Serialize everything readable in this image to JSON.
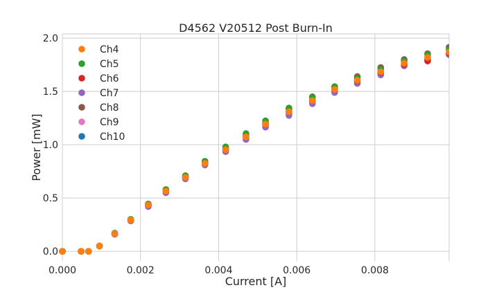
{
  "chart_data": {
    "type": "scatter",
    "title": "D4562 V20512 Post Burn-In",
    "xlabel": "Current [A]",
    "ylabel": "Power [mW]",
    "xlim": [
      0.0,
      0.0099
    ],
    "ylim": [
      -0.09,
      2.04
    ],
    "xticks": [
      0.0,
      0.002,
      0.004,
      0.006,
      0.008
    ],
    "xtick_labels": [
      "0.000",
      "0.002",
      "0.004",
      "0.006",
      "0.008"
    ],
    "yticks": [
      0.0,
      0.5,
      1.0,
      1.5,
      2.0
    ],
    "ytick_labels": [
      "0.0",
      "0.5",
      "1.0",
      "1.5",
      "2.0"
    ],
    "grid": true,
    "legend_position": "top-left",
    "x": [
      0.0,
      0.00048,
      0.00067,
      0.00095,
      0.00134,
      0.00175,
      0.0022,
      0.00265,
      0.00315,
      0.00365,
      0.00418,
      0.0047,
      0.0052,
      0.0058,
      0.0064,
      0.00697,
      0.00755,
      0.00815,
      0.00875,
      0.00935,
      0.0099
    ],
    "series": [
      {
        "name": "Ch4",
        "color": "#ff7f0e",
        "values": [
          0.0,
          0.0,
          0.0,
          0.05,
          0.165,
          0.295,
          0.435,
          0.565,
          0.695,
          0.825,
          0.955,
          1.075,
          1.195,
          1.31,
          1.415,
          1.52,
          1.605,
          1.685,
          1.765,
          1.82,
          1.87
        ]
      },
      {
        "name": "Ch5",
        "color": "#2ca02c",
        "values": [
          0.0,
          0.0,
          0.0,
          0.05,
          0.17,
          0.3,
          0.445,
          0.58,
          0.71,
          0.845,
          0.98,
          1.105,
          1.225,
          1.345,
          1.445,
          1.545,
          1.625,
          1.71,
          1.785,
          1.845,
          1.895
        ]
      },
      {
        "name": "Ch6",
        "color": "#d62728",
        "values": [
          0.0,
          0.0,
          0.0,
          0.05,
          0.165,
          0.295,
          0.435,
          0.565,
          0.695,
          0.825,
          0.955,
          1.08,
          1.195,
          1.31,
          1.415,
          1.52,
          1.6,
          1.68,
          1.755,
          1.785,
          1.86
        ]
      },
      {
        "name": "Ch7",
        "color": "#9467bd",
        "values": [
          0.0,
          0.0,
          0.0,
          0.05,
          0.16,
          0.285,
          0.42,
          0.55,
          0.68,
          0.81,
          0.935,
          1.05,
          1.165,
          1.275,
          1.385,
          1.49,
          1.575,
          1.655,
          1.74,
          1.795,
          1.845
        ]
      },
      {
        "name": "Ch8",
        "color": "#8c564b",
        "values": [
          0.0,
          0.0,
          0.0,
          0.05,
          0.17,
          0.3,
          0.44,
          0.575,
          0.705,
          0.845,
          0.97,
          1.095,
          1.21,
          1.335,
          1.45,
          1.545,
          1.64,
          1.725,
          1.8,
          1.855,
          1.915
        ]
      },
      {
        "name": "Ch9",
        "color": "#e377c2",
        "values": [
          0.0,
          0.0,
          0.0,
          0.05,
          0.165,
          0.29,
          0.43,
          0.56,
          0.69,
          0.82,
          0.95,
          1.07,
          1.19,
          1.305,
          1.415,
          1.515,
          1.6,
          1.685,
          1.76,
          1.81,
          1.855
        ]
      },
      {
        "name": "Ch10",
        "color": "#1f77b4",
        "values": [
          0.0,
          0.0,
          0.0,
          0.05,
          0.165,
          0.29,
          0.43,
          0.56,
          0.69,
          0.82,
          0.945,
          1.065,
          1.185,
          1.295,
          1.405,
          1.505,
          1.59,
          1.67,
          1.75,
          1.8,
          1.85
        ]
      }
    ]
  }
}
